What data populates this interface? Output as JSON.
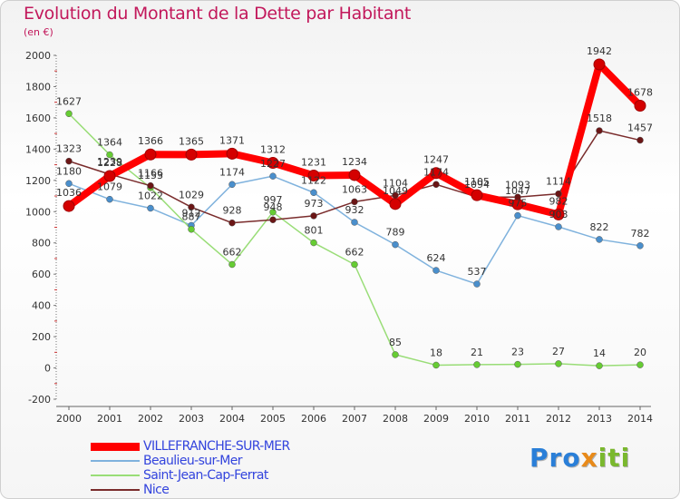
{
  "title": "Evolution du Montant de la Dette par Habitant",
  "subtitle": "(en €)",
  "logo": {
    "part1": "Pro",
    "part2": "x",
    "part3": "iti"
  },
  "chart_data": {
    "type": "line",
    "x": [
      "2000",
      "2001",
      "2002",
      "2003",
      "2004",
      "2005",
      "2006",
      "2007",
      "2008",
      "2009",
      "2010",
      "2011",
      "2012",
      "2013",
      "2014"
    ],
    "ylim": [
      -200,
      2000
    ],
    "yticks": [
      -200,
      0,
      200,
      400,
      600,
      800,
      1000,
      1200,
      1400,
      1600,
      1800,
      2000
    ],
    "grid": false,
    "legend_position": "bottom-left",
    "series": [
      {
        "name": "VILLEFRANCHE-SUR-MER",
        "color": "#ff0000",
        "point_color": "#d40000",
        "width": 8,
        "label_offset": -11,
        "values": [
          1036,
          1228,
          1366,
          1365,
          1371,
          1312,
          1231,
          1234,
          1049,
          1247,
          1105,
          1047,
          982,
          1942,
          1678
        ]
      },
      {
        "name": "Beaulieu-sur-Mer",
        "color": "#7fb2dd",
        "point_color": "#4a8fcc",
        "width": 1.5,
        "label_offset": -10,
        "values": [
          1180,
          1079,
          1022,
          912,
          1174,
          1227,
          1122,
          932,
          789,
          624,
          537,
          975,
          903,
          822,
          782
        ]
      },
      {
        "name": "Saint-Jean-Cap-Ferrat",
        "color": "#99dd77",
        "point_color": "#66cc33",
        "width": 1.5,
        "label_offset": -10,
        "values": [
          1627,
          1364,
          1153,
          887,
          662,
          997,
          801,
          662,
          85,
          18,
          21,
          23,
          27,
          14,
          20
        ]
      },
      {
        "name": "Nice",
        "color": "#7a2c2c",
        "point_color": "#6b1616",
        "width": 1.5,
        "label_offset": -10,
        "values": [
          1323,
          1239,
          1166,
          1029,
          928,
          948,
          973,
          1063,
          1104,
          1174,
          1094,
          1093,
          1114,
          1518,
          1457
        ]
      }
    ]
  }
}
